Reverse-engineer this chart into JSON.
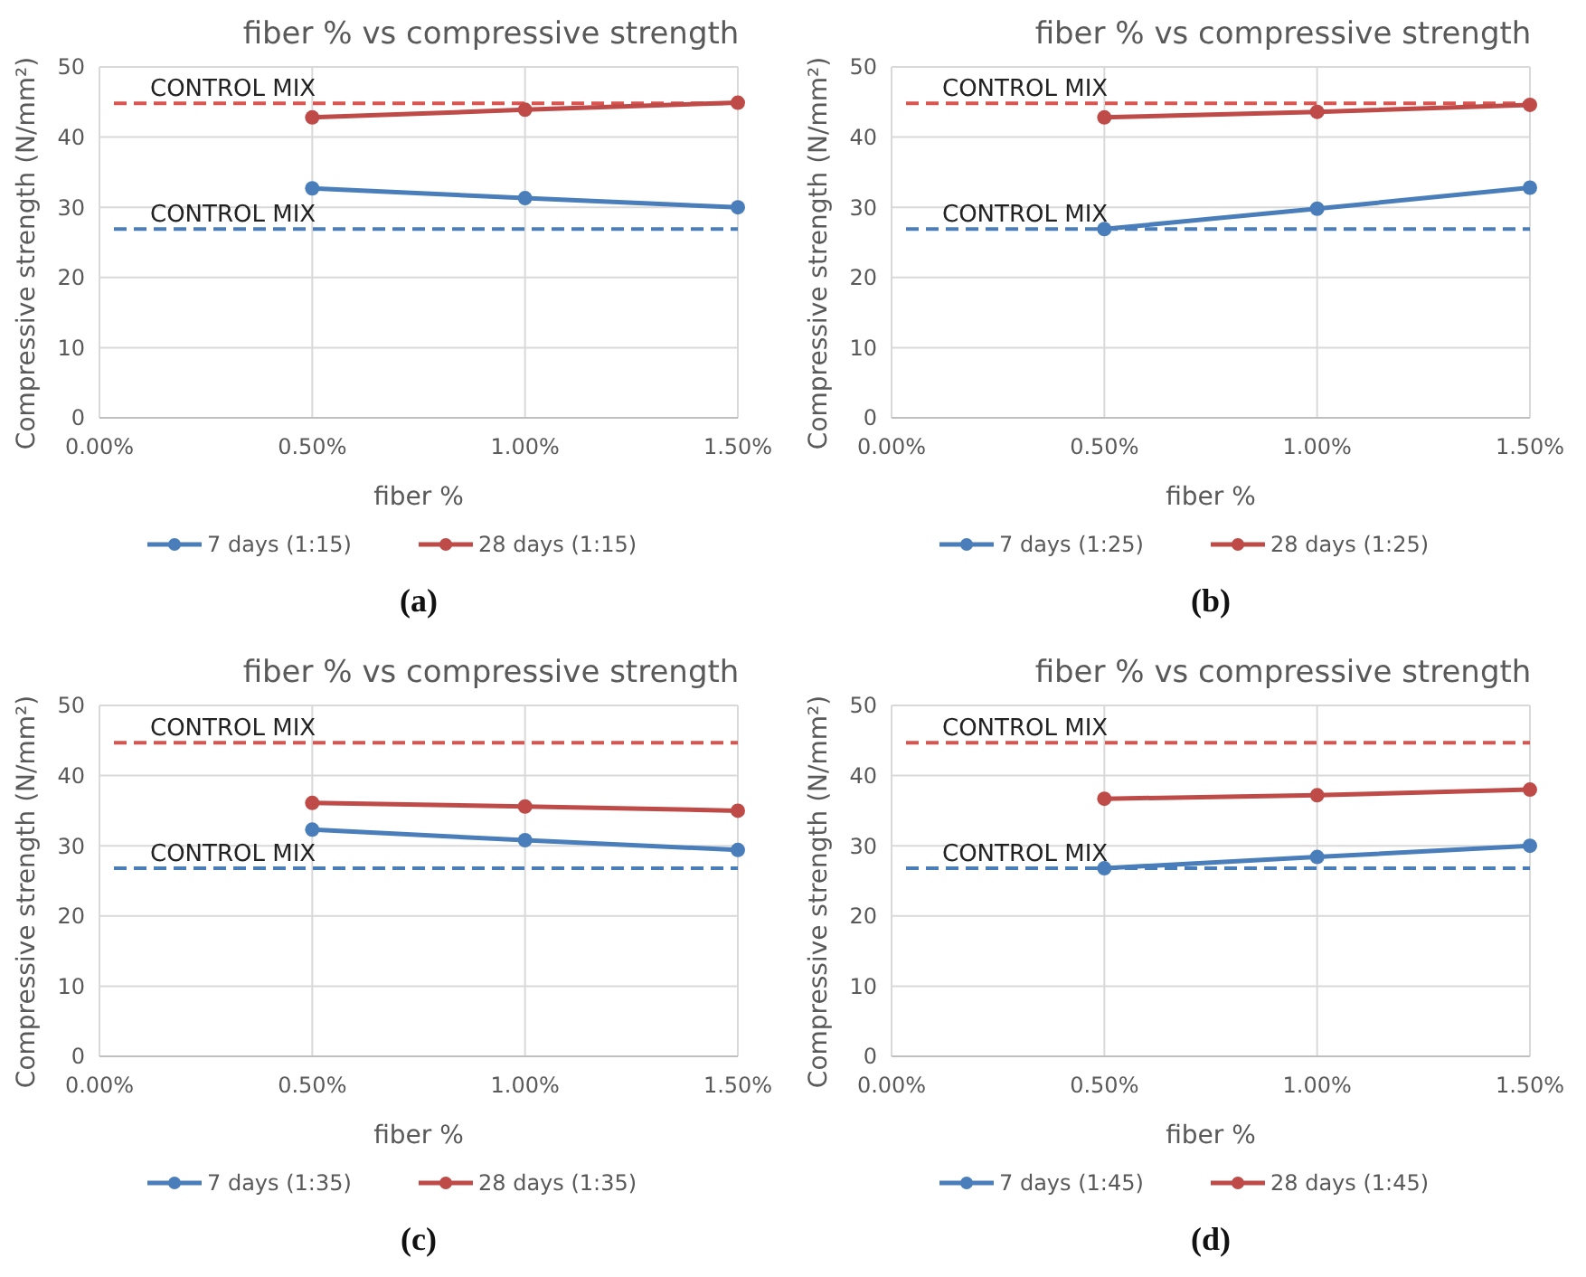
{
  "chart_data": [
    {
      "type": "line",
      "title": "fiber % vs compressive strength",
      "xlabel": "fiber %",
      "ylabel": "Compressive strength (N/mm²)",
      "x": [
        0.5,
        1.0,
        1.5
      ],
      "series": [
        {
          "name": "7 days (1:15)",
          "color": "#4a7ebb",
          "values": [
            32.7,
            31.3,
            30.0
          ]
        },
        {
          "name": "28 days (1:15)",
          "color": "#be4b48",
          "values": [
            42.8,
            43.9,
            44.9
          ]
        }
      ],
      "xlim": [
        0,
        1.5
      ],
      "xticks": [
        {
          "value": 0,
          "label": "0.00%"
        },
        {
          "value": 0.5,
          "label": "0.50%"
        },
        {
          "value": 1,
          "label": "1.00%"
        },
        {
          "value": 1.5,
          "label": "1.50%"
        }
      ],
      "ylim": [
        0,
        50
      ],
      "yticks": [
        0,
        10,
        20,
        30,
        40,
        50
      ],
      "ref_lines": [
        {
          "axis": "y",
          "value": 44.8,
          "label": "CONTROL MIX",
          "color": "#d9534f",
          "line_style": "dashed"
        },
        {
          "axis": "y",
          "value": 26.9,
          "label": "CONTROL MIX",
          "color": "#4a7ebb",
          "line_style": "dashed"
        }
      ],
      "annotations": [
        "(a)"
      ],
      "grid": true,
      "legend": "bottom",
      "marker": "circle",
      "line_style": "solid"
    },
    {
      "type": "line",
      "title": "fiber % vs compressive strength",
      "xlabel": "fiber %",
      "ylabel": "Compressive strength (N/mm²)",
      "x": [
        0.5,
        1.0,
        1.5
      ],
      "series": [
        {
          "name": "7 days (1:25)",
          "color": "#4a7ebb",
          "values": [
            26.9,
            29.8,
            32.8
          ]
        },
        {
          "name": "28 days (1:25)",
          "color": "#be4b48",
          "values": [
            42.8,
            43.6,
            44.6
          ]
        }
      ],
      "xlim": [
        0,
        1.5
      ],
      "xticks": [
        {
          "value": 0,
          "label": "0.00%"
        },
        {
          "value": 0.5,
          "label": "0.50%"
        },
        {
          "value": 1,
          "label": "1.00%"
        },
        {
          "value": 1.5,
          "label": "1.50%"
        }
      ],
      "ylim": [
        0,
        50
      ],
      "yticks": [
        0,
        10,
        20,
        30,
        40,
        50
      ],
      "ref_lines": [
        {
          "axis": "y",
          "value": 44.8,
          "label": "CONTROL MIX",
          "color": "#d9534f",
          "line_style": "dashed"
        },
        {
          "axis": "y",
          "value": 26.9,
          "label": "CONTROL MIX",
          "color": "#4a7ebb",
          "line_style": "dashed"
        }
      ],
      "annotations": [
        "(b)"
      ],
      "grid": true,
      "legend": "bottom",
      "marker": "circle",
      "line_style": "solid"
    },
    {
      "type": "line",
      "title": "fiber % vs compressive strength",
      "xlabel": "fiber %",
      "ylabel": "Compressive strength (N/mm²)",
      "x": [
        0.5,
        1.0,
        1.5
      ],
      "series": [
        {
          "name": "7 days (1:35)",
          "color": "#4a7ebb",
          "values": [
            32.3,
            30.8,
            29.4
          ]
        },
        {
          "name": "28 days (1:35)",
          "color": "#be4b48",
          "values": [
            36.1,
            35.6,
            35.0
          ]
        }
      ],
      "xlim": [
        0,
        1.5
      ],
      "xticks": [
        {
          "value": 0,
          "label": "0.00%"
        },
        {
          "value": 0.5,
          "label": "0.50%"
        },
        {
          "value": 1,
          "label": "1.00%"
        },
        {
          "value": 1.5,
          "label": "1.50%"
        }
      ],
      "ylim": [
        0,
        50
      ],
      "yticks": [
        0,
        10,
        20,
        30,
        40,
        50
      ],
      "ref_lines": [
        {
          "axis": "y",
          "value": 44.7,
          "label": "CONTROL MIX",
          "color": "#d9534f",
          "line_style": "dashed"
        },
        {
          "axis": "y",
          "value": 26.8,
          "label": "CONTROL MIX",
          "color": "#4a7ebb",
          "line_style": "dashed"
        }
      ],
      "annotations": [
        "(c)"
      ],
      "grid": true,
      "legend": "bottom",
      "marker": "circle",
      "line_style": "solid"
    },
    {
      "type": "line",
      "title": "fiber % vs compressive strength",
      "xlabel": "fiber %",
      "ylabel": "Compressive strength (N/mm²)",
      "x": [
        0.5,
        1.0,
        1.5
      ],
      "series": [
        {
          "name": "7 days (1:45)",
          "color": "#4a7ebb",
          "values": [
            26.8,
            28.4,
            30.0
          ]
        },
        {
          "name": "28 days (1:45)",
          "color": "#be4b48",
          "values": [
            36.7,
            37.2,
            38.0
          ]
        }
      ],
      "xlim": [
        0,
        1.5
      ],
      "xticks": [
        {
          "value": 0,
          "label": "0.00%"
        },
        {
          "value": 0.5,
          "label": "0.50%"
        },
        {
          "value": 1,
          "label": "1.00%"
        },
        {
          "value": 1.5,
          "label": "1.50%"
        }
      ],
      "ylim": [
        0,
        50
      ],
      "yticks": [
        0,
        10,
        20,
        30,
        40,
        50
      ],
      "ref_lines": [
        {
          "axis": "y",
          "value": 44.7,
          "label": "CONTROL MIX",
          "color": "#d9534f",
          "line_style": "dashed"
        },
        {
          "axis": "y",
          "value": 26.8,
          "label": "CONTROL MIX",
          "color": "#4a7ebb",
          "line_style": "dashed"
        }
      ],
      "annotations": [
        "(d)"
      ],
      "grid": true,
      "legend": "bottom",
      "marker": "circle",
      "line_style": "solid"
    }
  ]
}
